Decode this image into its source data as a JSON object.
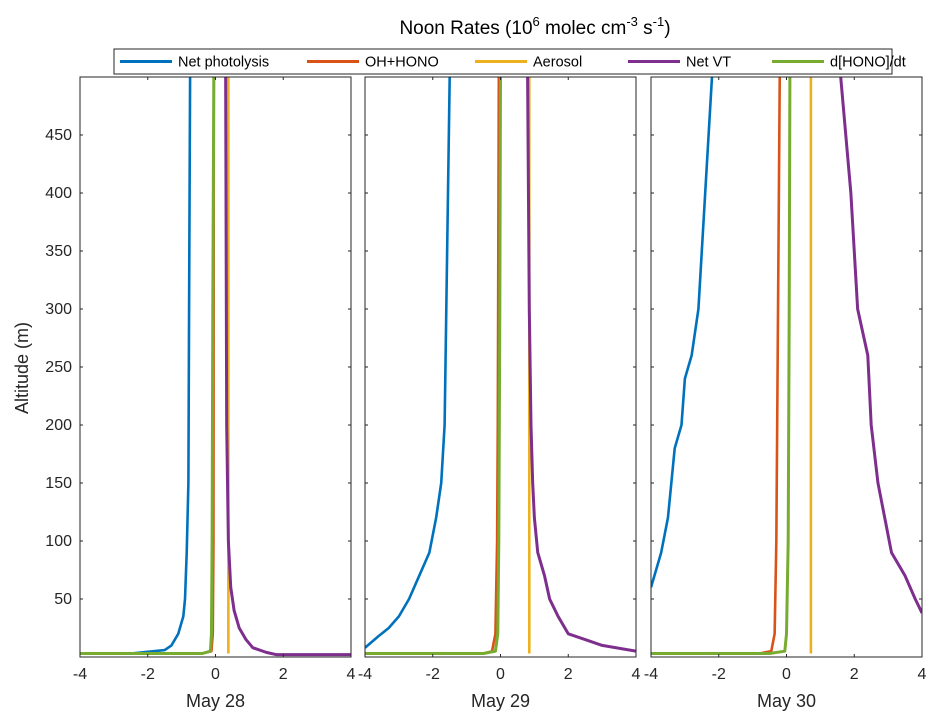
{
  "chart_data": {
    "type": "line",
    "title": "Noon Rates (10",
    "title_exp1": "6",
    "title_mid": " molec cm",
    "title_exp2": "-3",
    "title_mid2": " s",
    "title_exp3": "-1",
    "title_end": ")",
    "ylabel": "Altitude (m)",
    "ylim": [
      0,
      500
    ],
    "xlim": [
      -4,
      4
    ],
    "yticks": [
      50,
      100,
      150,
      200,
      250,
      300,
      350,
      400,
      450
    ],
    "xticks": [
      -4,
      -2,
      0,
      2,
      4
    ],
    "legend_position": "top",
    "grid": false,
    "series_styles": [
      {
        "name": "Net photolysis",
        "color": "#0072BD"
      },
      {
        "name": "OH+HONO",
        "color": "#D95319"
      },
      {
        "name": "Aerosol",
        "color": "#EDB120"
      },
      {
        "name": "Net VT",
        "color": "#7E2F8E"
      },
      {
        "name": "d[HONO]/dt",
        "color": "#77AC30"
      }
    ],
    "panels": [
      {
        "xlabel": "May 28",
        "series": [
          {
            "name": "Net photolysis",
            "points": [
              [
                -0.75,
                500
              ],
              [
                -0.78,
                300
              ],
              [
                -0.8,
                150
              ],
              [
                -0.85,
                90
              ],
              [
                -0.9,
                50
              ],
              [
                -0.95,
                35
              ],
              [
                -1.1,
                20
              ],
              [
                -1.3,
                10
              ],
              [
                -1.5,
                6
              ],
              [
                -2.5,
                3
              ],
              [
                -4,
                3
              ]
            ]
          },
          {
            "name": "OH+HONO",
            "points": [
              [
                -0.05,
                500
              ],
              [
                -0.06,
                100
              ],
              [
                -0.08,
                20
              ],
              [
                -0.12,
                5
              ],
              [
                -0.4,
                3
              ],
              [
                -4,
                3
              ]
            ]
          },
          {
            "name": "Aerosol",
            "points": [
              [
                0.38,
                500
              ],
              [
                0.38,
                3
              ]
            ]
          },
          {
            "name": "Net VT",
            "points": [
              [
                0.3,
                500
              ],
              [
                0.33,
                200
              ],
              [
                0.38,
                100
              ],
              [
                0.45,
                60
              ],
              [
                0.55,
                40
              ],
              [
                0.7,
                25
              ],
              [
                0.9,
                15
              ],
              [
                1.1,
                8
              ],
              [
                1.5,
                4
              ],
              [
                1.8,
                2
              ],
              [
                4,
                2
              ]
            ]
          },
          {
            "name": "d[HONO]/dt",
            "points": [
              [
                -0.05,
                500
              ],
              [
                -0.08,
                300
              ],
              [
                -0.1,
                100
              ],
              [
                -0.12,
                20
              ],
              [
                -0.15,
                5
              ],
              [
                -0.4,
                3
              ],
              [
                -4,
                3
              ]
            ]
          }
        ]
      },
      {
        "xlabel": "May 29",
        "series": [
          {
            "name": "Net photolysis",
            "points": [
              [
                -1.5,
                500
              ],
              [
                -1.55,
                400
              ],
              [
                -1.6,
                300
              ],
              [
                -1.65,
                200
              ],
              [
                -1.75,
                150
              ],
              [
                -1.9,
                120
              ],
              [
                -2.1,
                90
              ],
              [
                -2.4,
                70
              ],
              [
                -2.7,
                50
              ],
              [
                -3,
                35
              ],
              [
                -3.3,
                25
              ],
              [
                -3.6,
                18
              ],
              [
                -4,
                8
              ]
            ]
          },
          {
            "name": "OH+HONO",
            "points": [
              [
                -0.05,
                500
              ],
              [
                -0.08,
                200
              ],
              [
                -0.1,
                100
              ],
              [
                -0.15,
                20
              ],
              [
                -0.25,
                5
              ],
              [
                -0.5,
                3
              ],
              [
                -4,
                3
              ]
            ]
          },
          {
            "name": "Aerosol",
            "points": [
              [
                0.85,
                500
              ],
              [
                0.85,
                3
              ]
            ]
          },
          {
            "name": "Net VT",
            "points": [
              [
                0.8,
                500
              ],
              [
                0.85,
                300
              ],
              [
                0.9,
                200
              ],
              [
                0.95,
                150
              ],
              [
                1.0,
                120
              ],
              [
                1.1,
                90
              ],
              [
                1.3,
                70
              ],
              [
                1.45,
                50
              ],
              [
                1.7,
                35
              ],
              [
                2,
                20
              ],
              [
                2.5,
                15
              ],
              [
                3,
                10
              ],
              [
                4,
                5
              ]
            ]
          },
          {
            "name": "d[HONO]/dt",
            "points": [
              [
                0.0,
                500
              ],
              [
                -0.02,
                300
              ],
              [
                -0.05,
                100
              ],
              [
                -0.08,
                20
              ],
              [
                -0.15,
                5
              ],
              [
                -0.5,
                3
              ],
              [
                -4,
                3
              ]
            ]
          }
        ]
      },
      {
        "xlabel": "May 30",
        "series": [
          {
            "name": "Net photolysis",
            "points": [
              [
                -2.2,
                500
              ],
              [
                -2.4,
                400
              ],
              [
                -2.6,
                300
              ],
              [
                -2.8,
                260
              ],
              [
                -3.0,
                240
              ],
              [
                -3.1,
                200
              ],
              [
                -3.3,
                180
              ],
              [
                -3.4,
                150
              ],
              [
                -3.5,
                120
              ],
              [
                -3.7,
                90
              ],
              [
                -4,
                60
              ]
            ]
          },
          {
            "name": "OH+HONO",
            "points": [
              [
                -0.2,
                500
              ],
              [
                -0.25,
                300
              ],
              [
                -0.3,
                100
              ],
              [
                -0.35,
                20
              ],
              [
                -0.45,
                5
              ],
              [
                -0.8,
                3
              ],
              [
                -4,
                3
              ]
            ]
          },
          {
            "name": "Aerosol",
            "points": [
              [
                0.72,
                500
              ],
              [
                0.72,
                3
              ]
            ]
          },
          {
            "name": "Net VT",
            "points": [
              [
                1.6,
                500
              ],
              [
                1.9,
                400
              ],
              [
                2.1,
                300
              ],
              [
                2.4,
                260
              ],
              [
                2.5,
                200
              ],
              [
                2.7,
                150
              ],
              [
                2.9,
                120
              ],
              [
                3.1,
                90
              ],
              [
                3.5,
                70
              ],
              [
                3.8,
                50
              ],
              [
                4,
                38
              ]
            ]
          },
          {
            "name": "d[HONO]/dt",
            "points": [
              [
                0.1,
                500
              ],
              [
                0.08,
                300
              ],
              [
                0.05,
                100
              ],
              [
                0.0,
                20
              ],
              [
                -0.05,
                5
              ],
              [
                -0.5,
                3
              ],
              [
                -4,
                3
              ]
            ]
          }
        ]
      }
    ]
  }
}
